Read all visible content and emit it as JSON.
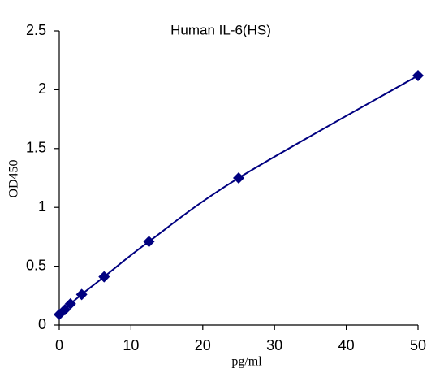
{
  "chart_data": {
    "type": "scatter",
    "title": "Human IL-6(HS)",
    "x_label": "pg/ml",
    "y_label": "OD450",
    "series": [
      {
        "name": "Human IL-6(HS)",
        "color": "#000080",
        "x": [
          0,
          0.78,
          1.56,
          3.125,
          6.25,
          12.5,
          25,
          50
        ],
        "values": [
          0.09,
          0.13,
          0.18,
          0.26,
          0.41,
          0.71,
          1.25,
          2.12
        ]
      }
    ],
    "line": true,
    "xlim": [
      0,
      50
    ],
    "xticks": [
      0,
      10,
      20,
      30,
      40,
      50
    ],
    "ylim": [
      0,
      2.5
    ],
    "yticks": [
      0,
      0.5,
      1,
      1.5,
      2,
      2.5
    ],
    "grid": false
  }
}
